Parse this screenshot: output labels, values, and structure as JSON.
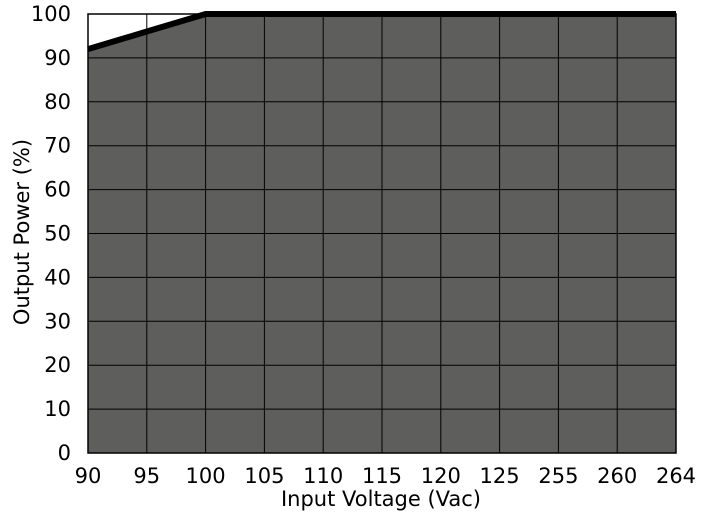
{
  "chart_data": {
    "type": "area",
    "xlabel": "Input Voltage (Vac)",
    "ylabel": "Output Power (%)",
    "x_ticks": [
      "90",
      "95",
      "100",
      "105",
      "110",
      "115",
      "120",
      "125",
      "255",
      "260",
      "264"
    ],
    "y_ticks": [
      "0",
      "10",
      "20",
      "30",
      "40",
      "50",
      "60",
      "70",
      "80",
      "90",
      "100"
    ],
    "ylim": [
      0,
      100
    ],
    "x_scale": "categorical-equal-spacing",
    "grid": true,
    "series": [
      {
        "x": [
          "90",
          "95",
          "100",
          "105",
          "110",
          "115",
          "120",
          "125",
          "255",
          "260",
          "264"
        ],
        "values": [
          92,
          96,
          100,
          100,
          100,
          100,
          100,
          100,
          100,
          100,
          100
        ]
      }
    ],
    "colors": {
      "fill": "#5e5e5c",
      "line": "#000000",
      "grid": "#000000",
      "background": "#ffffff"
    }
  }
}
